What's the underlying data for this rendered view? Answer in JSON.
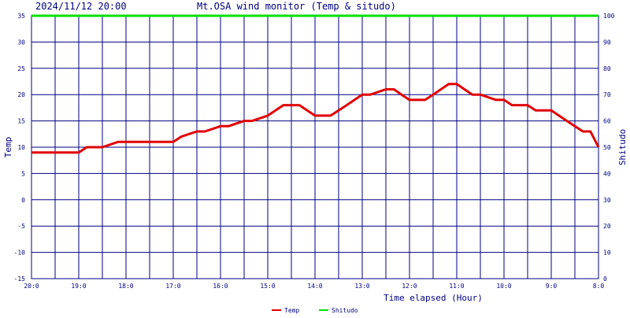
{
  "chart_data": {
    "type": "line",
    "title_left": "2024/11/12 20:00",
    "title": "Mt.OSA wind monitor (Temp & situdo)",
    "xlabel": "Time elapsed (Hour)",
    "ylabel_left": "Temp",
    "ylabel_right": "Shitudo",
    "y_left_range": [
      -15,
      35
    ],
    "y_left_ticks": [
      "35",
      "30",
      "25",
      "20",
      "15",
      "10",
      "5",
      "0",
      "-5",
      "-10",
      "-15"
    ],
    "y_right_range": [
      0,
      100
    ],
    "y_right_ticks": [
      "100",
      "90",
      "80",
      "70",
      "60",
      "50",
      "40",
      "30",
      "20",
      "10",
      "0"
    ],
    "x_range": [
      0,
      12
    ],
    "x_tick_labels": [
      "20:0",
      "19:0",
      "18:0",
      "17:0",
      "16:0",
      "15:0",
      "14:0",
      "13:0",
      "12:0",
      "11:0",
      "10:0",
      "9:0",
      "8:0"
    ],
    "grid": true,
    "legend_position": "bottom-center",
    "series": [
      {
        "name": "Temp",
        "axis": "left",
        "color": "#e00000",
        "x": [
          0,
          0.5,
          1.0,
          1.17,
          1.5,
          1.83,
          2.5,
          2.83,
          3.0,
          3.17,
          3.5,
          3.67,
          4.0,
          4.17,
          4.5,
          4.67,
          5.0,
          5.33,
          5.67,
          6.0,
          6.17,
          6.33,
          6.67,
          7.0,
          7.17,
          7.5,
          7.67,
          7.83,
          8.0,
          8.33,
          8.5,
          8.83,
          9.0,
          9.33,
          9.5,
          9.83,
          10.0,
          10.17,
          10.5,
          10.67,
          11.0,
          11.33,
          11.67,
          11.83,
          12.0
        ],
        "y": [
          9,
          9,
          9,
          10,
          10,
          11,
          11,
          11,
          11,
          12,
          13,
          13,
          14,
          14,
          15,
          15,
          16,
          18,
          18,
          16,
          16,
          16,
          18,
          20,
          20,
          21,
          21,
          20,
          19,
          19,
          20,
          22,
          22,
          20,
          20,
          19,
          19,
          18,
          18,
          17,
          17,
          15,
          13,
          13,
          10
        ]
      },
      {
        "name": "Shitudo",
        "axis": "right",
        "color": "#00e000",
        "x": [
          0,
          12
        ],
        "y": [
          100,
          100
        ]
      }
    ]
  }
}
